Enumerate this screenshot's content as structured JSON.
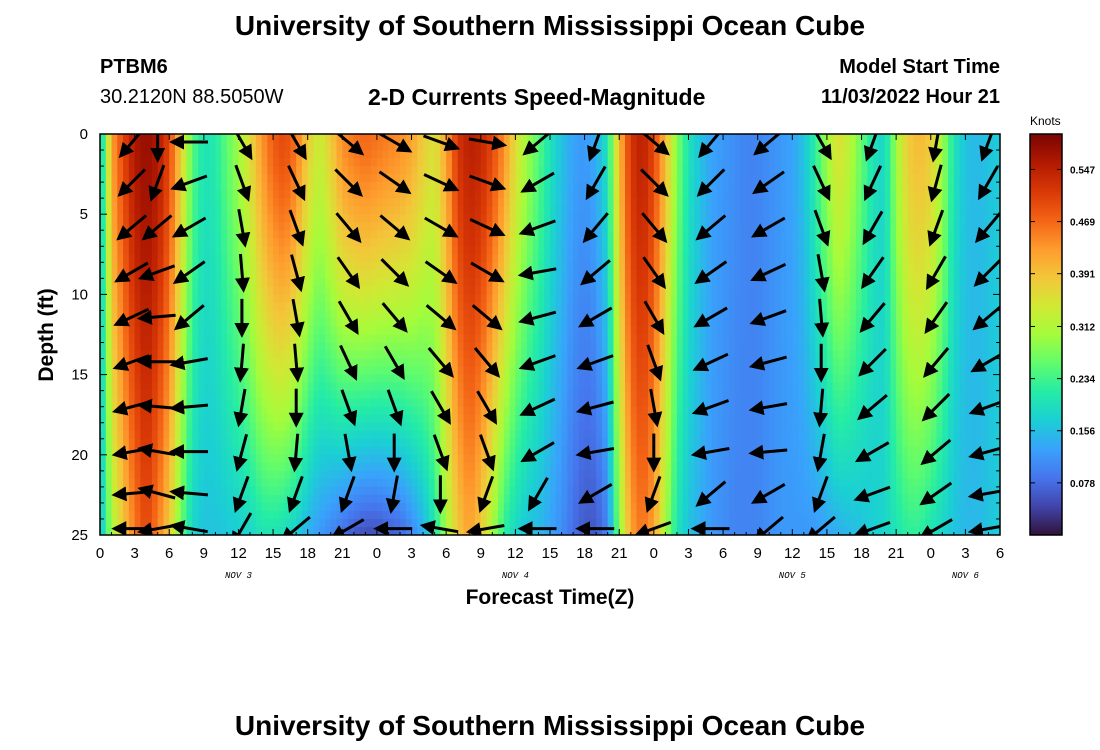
{
  "header": {
    "title": "University of Southern Mississippi Ocean Cube",
    "station_id": "PTBM6",
    "station_coords": "30.2120N  88.5050W",
    "plot_title": "2-D Currents Speed-Magnitude",
    "model_start_label": "Model Start Time",
    "model_start_value": "11/03/2022 Hour 21"
  },
  "footer": {
    "title": "University of Southern Mississippi Ocean Cube"
  },
  "chart_data": {
    "type": "heatmap",
    "title": "2-D Currents Speed-Magnitude",
    "xlabel": "Forecast Time(Z)",
    "ylabel": "Depth (ft)",
    "xlim": [
      0,
      78
    ],
    "ylim": [
      0,
      25
    ],
    "x_tick_labels": [
      "0",
      "3",
      "6",
      "9",
      "12",
      "15",
      "18",
      "21",
      "0",
      "3",
      "6",
      "9",
      "12",
      "15",
      "18",
      "21",
      "0",
      "3",
      "6",
      "9",
      "12",
      "15",
      "18",
      "21",
      "0",
      "3",
      "6"
    ],
    "y_tick_labels": [
      "0",
      "5",
      "10",
      "15",
      "20",
      "25"
    ],
    "day_labels": [
      {
        "hour": 12,
        "text": "NOV 3"
      },
      {
        "hour": 36,
        "text": "NOV 4"
      },
      {
        "hour": 60,
        "text": "NOV 5"
      },
      {
        "hour": 75,
        "text": "NOV 6"
      }
    ],
    "colorbar": {
      "title": "Knots",
      "min": 0.0,
      "max": 0.6,
      "ticks": [
        "0.547",
        "0.469",
        "0.391",
        "0.312",
        "0.234",
        "0.156",
        "0.078"
      ],
      "tick_values": [
        0.547,
        0.469,
        0.391,
        0.312,
        0.234,
        0.156,
        0.078
      ]
    },
    "colormap": [
      "#30123b",
      "#4145ab",
      "#4675ed",
      "#39a2fc",
      "#1bcfd4",
      "#24eca6",
      "#61fc6c",
      "#a4fc3b",
      "#d1e834",
      "#f3c63a",
      "#fe9b2d",
      "#f36315",
      "#d93806",
      "#b11901",
      "#7a0402"
    ],
    "speed_profile": {
      "hours": [
        0,
        1,
        2,
        3,
        4,
        5,
        6,
        7,
        8,
        9,
        10,
        12,
        13,
        14,
        15,
        16,
        17,
        18,
        19,
        20,
        21,
        22,
        23,
        24,
        25,
        26,
        27,
        28,
        29,
        30,
        31,
        32,
        33,
        34,
        35,
        36,
        37,
        38,
        39,
        40,
        41,
        42,
        43,
        44,
        45,
        46,
        47,
        48,
        49,
        50,
        51,
        52,
        53,
        54,
        55,
        56,
        57,
        58,
        59,
        60,
        61,
        62,
        63,
        64,
        65,
        66,
        67,
        68,
        69,
        70,
        71,
        72,
        73,
        74,
        75,
        76,
        77,
        78
      ],
      "surface": [
        0.15,
        0.42,
        0.5,
        0.56,
        0.58,
        0.56,
        0.5,
        0.38,
        0.25,
        0.2,
        0.21,
        0.3,
        0.36,
        0.43,
        0.48,
        0.5,
        0.46,
        0.38,
        0.33,
        0.38,
        0.44,
        0.46,
        0.47,
        0.46,
        0.45,
        0.44,
        0.42,
        0.38,
        0.35,
        0.42,
        0.52,
        0.55,
        0.54,
        0.5,
        0.44,
        0.36,
        0.3,
        0.25,
        0.2,
        0.16,
        0.13,
        0.12,
        0.14,
        0.2,
        0.4,
        0.52,
        0.55,
        0.5,
        0.4,
        0.28,
        0.2,
        0.16,
        0.13,
        0.12,
        0.11,
        0.1,
        0.1,
        0.11,
        0.12,
        0.13,
        0.16,
        0.22,
        0.3,
        0.36,
        0.32,
        0.26,
        0.2,
        0.18,
        0.3,
        0.38,
        0.4,
        0.38,
        0.3,
        0.2,
        0.16,
        0.15,
        0.16,
        0.17
      ],
      "bottom": [
        0.15,
        0.3,
        0.38,
        0.45,
        0.5,
        0.45,
        0.38,
        0.26,
        0.18,
        0.16,
        0.16,
        0.17,
        0.18,
        0.2,
        0.2,
        0.19,
        0.17,
        0.14,
        0.12,
        0.1,
        0.08,
        0.06,
        0.05,
        0.05,
        0.06,
        0.07,
        0.1,
        0.14,
        0.2,
        0.3,
        0.38,
        0.42,
        0.38,
        0.3,
        0.22,
        0.18,
        0.16,
        0.15,
        0.13,
        0.11,
        0.08,
        0.06,
        0.06,
        0.1,
        0.28,
        0.42,
        0.46,
        0.42,
        0.3,
        0.2,
        0.16,
        0.14,
        0.12,
        0.11,
        0.1,
        0.1,
        0.1,
        0.11,
        0.12,
        0.12,
        0.12,
        0.12,
        0.13,
        0.14,
        0.15,
        0.16,
        0.17,
        0.18,
        0.2,
        0.22,
        0.22,
        0.2,
        0.18,
        0.16,
        0.15,
        0.15,
        0.16,
        0.17
      ]
    },
    "arrow_columns": [
      {
        "hour": 2.8,
        "dirs": [
          220,
          225,
          230,
          240,
          245,
          250,
          255,
          260,
          265,
          270
        ]
      },
      {
        "hour": 5.0,
        "dirs": [
          180,
          200,
          230,
          250,
          265,
          270,
          275,
          280,
          285,
          260
        ]
      },
      {
        "hour": 7.8,
        "dirs": [
          270,
          250,
          240,
          235,
          230,
          260,
          265,
          270,
          275,
          280
        ]
      },
      {
        "hour": 12.3,
        "dirs": [
          150,
          160,
          170,
          175,
          180,
          185,
          190,
          195,
          200,
          210
        ]
      },
      {
        "hour": 17.0,
        "dirs": [
          150,
          155,
          160,
          165,
          170,
          175,
          180,
          185,
          200,
          230
        ]
      },
      {
        "hour": 21.5,
        "dirs": [
          130,
          135,
          140,
          145,
          150,
          155,
          160,
          170,
          200,
          240
        ]
      },
      {
        "hour": 25.5,
        "dirs": [
          120,
          125,
          130,
          135,
          140,
          150,
          160,
          180,
          190,
          270
        ]
      },
      {
        "hour": 29.5,
        "dirs": [
          110,
          115,
          120,
          125,
          130,
          140,
          150,
          160,
          180,
          280
        ]
      },
      {
        "hour": 33.5,
        "dirs": [
          100,
          110,
          115,
          120,
          130,
          140,
          150,
          160,
          200,
          260
        ]
      },
      {
        "hour": 38.0,
        "dirs": [
          230,
          240,
          250,
          260,
          255,
          250,
          245,
          240,
          210,
          270
        ]
      },
      {
        "hour": 43.0,
        "dirs": [
          200,
          210,
          220,
          230,
          240,
          250,
          255,
          260,
          240,
          270
        ]
      },
      {
        "hour": 48.0,
        "dirs": [
          130,
          135,
          140,
          145,
          150,
          160,
          170,
          180,
          200,
          250
        ]
      },
      {
        "hour": 53.0,
        "dirs": [
          220,
          225,
          230,
          235,
          240,
          245,
          250,
          260,
          230,
          270
        ]
      },
      {
        "hour": 58.0,
        "dirs": [
          230,
          235,
          240,
          245,
          250,
          255,
          260,
          265,
          240,
          230
        ]
      },
      {
        "hour": 62.5,
        "dirs": [
          150,
          155,
          160,
          170,
          175,
          180,
          185,
          190,
          200,
          230
        ]
      },
      {
        "hour": 67.0,
        "dirs": [
          200,
          205,
          210,
          215,
          220,
          225,
          230,
          240,
          250,
          250
        ]
      },
      {
        "hour": 72.5,
        "dirs": [
          190,
          195,
          200,
          210,
          215,
          220,
          225,
          230,
          235,
          240
        ]
      },
      {
        "hour": 77.0,
        "dirs": [
          200,
          210,
          220,
          225,
          230,
          240,
          250,
          255,
          260,
          260
        ]
      }
    ],
    "arrow_depths": [
      0.5,
      3.0,
      5.8,
      8.6,
      11.4,
      14.2,
      17.0,
      19.8,
      22.4,
      24.6
    ]
  }
}
